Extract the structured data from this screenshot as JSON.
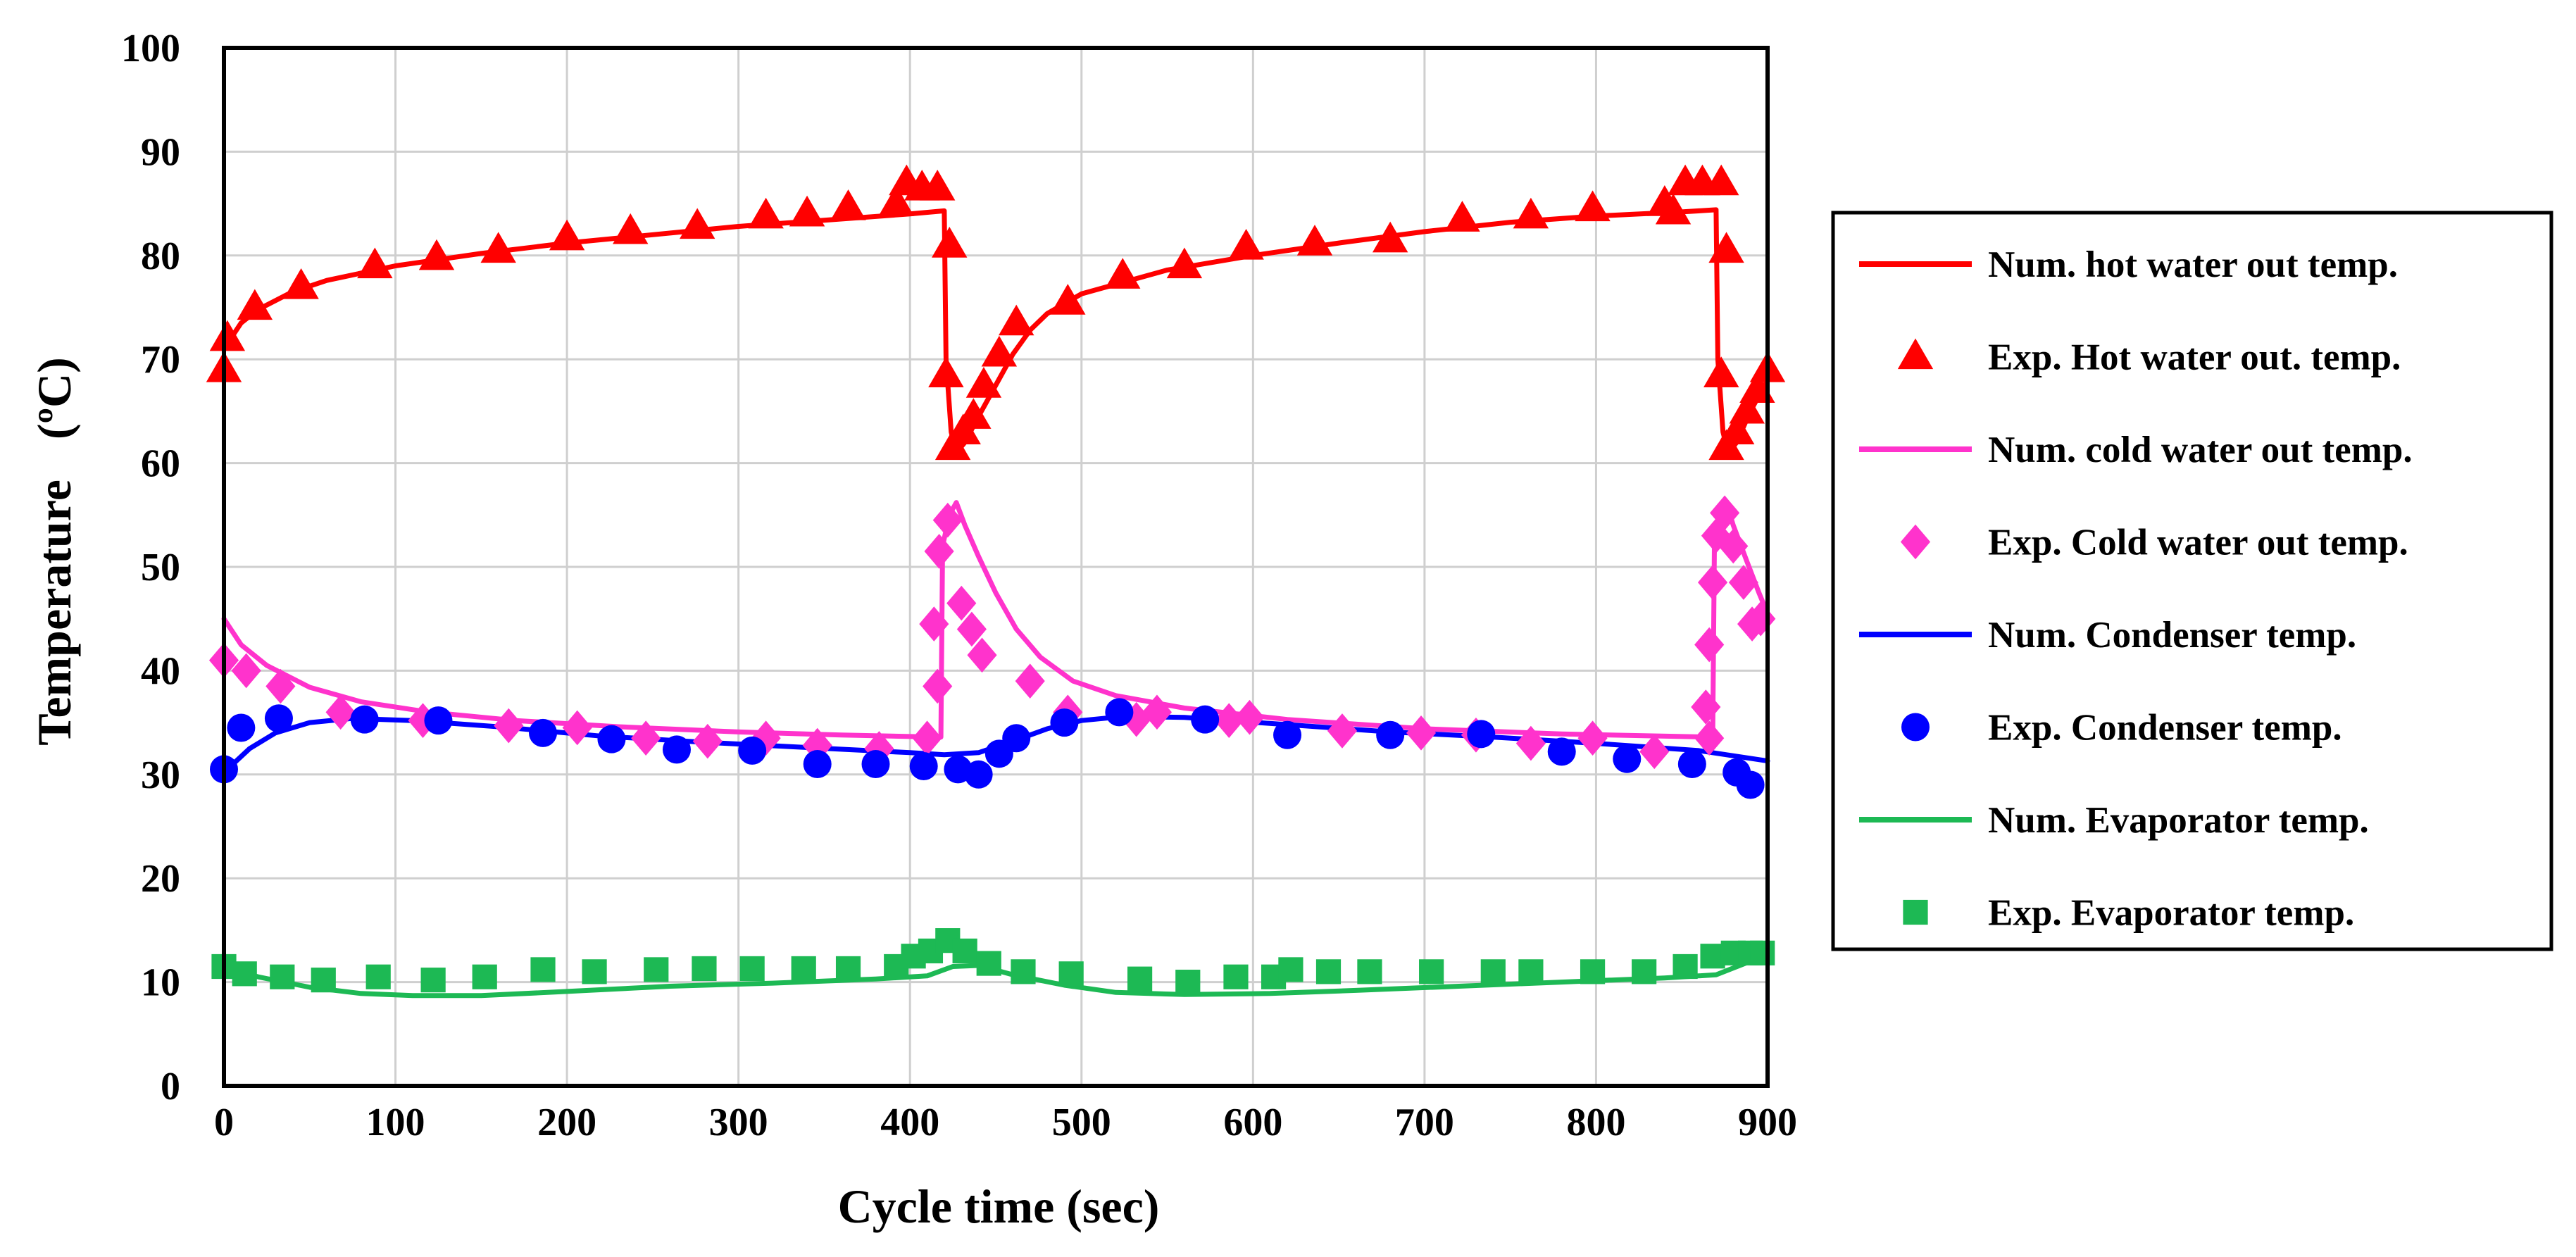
{
  "chart_data": {
    "type": "line",
    "title": "",
    "xlabel": "Cycle time (sec)",
    "ylabel": "Temperature",
    "ylabel_unit": "(ºC)",
    "xlim": [
      0,
      900
    ],
    "ylim": [
      0,
      100
    ],
    "x_ticks": [
      0,
      100,
      200,
      300,
      400,
      500,
      600,
      700,
      800,
      900
    ],
    "y_ticks": [
      0,
      10,
      20,
      30,
      40,
      50,
      60,
      70,
      80,
      90,
      100
    ],
    "grid": true,
    "legend_position": "right",
    "series": [
      {
        "name": "Num. hot water out temp.",
        "kind": "line",
        "color": "#ff0000",
        "points": [
          [
            0,
            71
          ],
          [
            10,
            73.5
          ],
          [
            20,
            74.8
          ],
          [
            40,
            76.5
          ],
          [
            60,
            77.6
          ],
          [
            100,
            79
          ],
          [
            150,
            80.2
          ],
          [
            200,
            81.2
          ],
          [
            250,
            82
          ],
          [
            300,
            82.8
          ],
          [
            350,
            83.4
          ],
          [
            400,
            84
          ],
          [
            420,
            84.3
          ],
          [
            421,
            70
          ],
          [
            424,
            63
          ],
          [
            427,
            61
          ],
          [
            432,
            62
          ],
          [
            440,
            64.5
          ],
          [
            450,
            67.5
          ],
          [
            460,
            70.5
          ],
          [
            470,
            72.8
          ],
          [
            480,
            74.4
          ],
          [
            500,
            76.3
          ],
          [
            550,
            78.6
          ],
          [
            600,
            80
          ],
          [
            650,
            81.2
          ],
          [
            700,
            82.3
          ],
          [
            750,
            83.2
          ],
          [
            800,
            83.8
          ],
          [
            850,
            84.2
          ],
          [
            870,
            84.4
          ],
          [
            871,
            70
          ],
          [
            874,
            63
          ],
          [
            877,
            61
          ],
          [
            882,
            62
          ],
          [
            890,
            65
          ],
          [
            900,
            68
          ]
        ]
      },
      {
        "name": "Exp. Hot water out. temp.",
        "kind": "marker",
        "marker": "triangle",
        "color": "#ff0000",
        "points": [
          [
            0,
            69
          ],
          [
            2,
            72
          ],
          [
            18,
            75
          ],
          [
            45,
            77
          ],
          [
            88,
            79
          ],
          [
            124,
            79.8
          ],
          [
            160,
            80.5
          ],
          [
            200,
            81.7
          ],
          [
            237,
            82.3
          ],
          [
            276,
            82.8
          ],
          [
            316,
            83.8
          ],
          [
            340,
            84
          ],
          [
            364,
            84.6
          ],
          [
            392,
            85
          ],
          [
            398,
            87
          ],
          [
            407,
            86.5
          ],
          [
            416,
            86.5
          ],
          [
            423,
            81
          ],
          [
            421,
            68.5
          ],
          [
            425,
            61.5
          ],
          [
            431,
            63
          ],
          [
            437,
            64.5
          ],
          [
            443,
            67.5
          ],
          [
            452,
            70.5
          ],
          [
            462,
            73.5
          ],
          [
            492,
            75.5
          ],
          [
            524,
            78
          ],
          [
            560,
            79
          ],
          [
            596,
            80.8
          ],
          [
            636,
            81.2
          ],
          [
            680,
            81.5
          ],
          [
            722,
            83.5
          ],
          [
            762,
            83.8
          ],
          [
            798,
            84.5
          ],
          [
            840,
            85
          ],
          [
            845,
            84.2
          ],
          [
            852,
            87
          ],
          [
            862,
            87
          ],
          [
            873,
            87
          ],
          [
            876,
            80.5
          ],
          [
            873,
            68.5
          ],
          [
            876,
            61.5
          ],
          [
            882,
            63
          ],
          [
            888,
            65
          ],
          [
            894,
            67
          ],
          [
            900,
            69
          ]
        ]
      },
      {
        "name": "Num. cold water out temp.",
        "kind": "line",
        "color": "#ff33cc",
        "points": [
          [
            0,
            45
          ],
          [
            10,
            42.5
          ],
          [
            25,
            40.5
          ],
          [
            50,
            38.4
          ],
          [
            80,
            37
          ],
          [
            120,
            36
          ],
          [
            170,
            35.2
          ],
          [
            230,
            34.6
          ],
          [
            300,
            34.1
          ],
          [
            360,
            33.8
          ],
          [
            418,
            33.6
          ],
          [
            419,
            52
          ],
          [
            423,
            55
          ],
          [
            427,
            56.2
          ],
          [
            432,
            54
          ],
          [
            440,
            51
          ],
          [
            450,
            47.5
          ],
          [
            462,
            44
          ],
          [
            476,
            41.3
          ],
          [
            495,
            39
          ],
          [
            520,
            37.6
          ],
          [
            560,
            36.4
          ],
          [
            620,
            35.3
          ],
          [
            700,
            34.4
          ],
          [
            780,
            33.9
          ],
          [
            868,
            33.6
          ],
          [
            869,
            52
          ],
          [
            873,
            55
          ],
          [
            876,
            56.2
          ],
          [
            880,
            54
          ],
          [
            888,
            50.5
          ],
          [
            895,
            47.5
          ],
          [
            900,
            45.5
          ]
        ]
      },
      {
        "name": "Exp. Cold water out temp.",
        "kind": "marker",
        "marker": "diamond",
        "color": "#ff33cc",
        "points": [
          [
            0,
            41
          ],
          [
            13,
            40
          ],
          [
            33,
            38.5
          ],
          [
            68,
            36
          ],
          [
            116,
            35.2
          ],
          [
            166,
            34.7
          ],
          [
            206,
            34.5
          ],
          [
            246,
            33.5
          ],
          [
            282,
            33.2
          ],
          [
            316,
            33.5
          ],
          [
            346,
            32.8
          ],
          [
            382,
            32.5
          ],
          [
            410,
            33.5
          ],
          [
            414,
            44.5
          ],
          [
            416,
            38.5
          ],
          [
            417,
            51.5
          ],
          [
            422,
            54.5
          ],
          [
            430,
            46.5
          ],
          [
            436,
            44
          ],
          [
            442,
            41.5
          ],
          [
            470,
            39
          ],
          [
            492,
            36
          ],
          [
            532,
            35.3
          ],
          [
            544,
            36
          ],
          [
            586,
            35.2
          ],
          [
            598,
            35.5
          ],
          [
            652,
            34.2
          ],
          [
            698,
            34
          ],
          [
            730,
            33.8
          ],
          [
            762,
            33
          ],
          [
            798,
            33.5
          ],
          [
            834,
            32.2
          ],
          [
            866,
            33.5
          ],
          [
            864,
            36.5
          ],
          [
            866,
            42.5
          ],
          [
            868,
            48.5
          ],
          [
            870,
            53
          ],
          [
            875,
            55.2
          ],
          [
            880,
            52
          ],
          [
            886,
            48.5
          ],
          [
            891,
            44.5
          ],
          [
            896,
            45
          ]
        ]
      },
      {
        "name": "Num. Condenser temp.",
        "kind": "line",
        "color": "#0000ff",
        "points": [
          [
            0,
            30.2
          ],
          [
            15,
            32.5
          ],
          [
            30,
            34
          ],
          [
            50,
            35
          ],
          [
            75,
            35.4
          ],
          [
            110,
            35.2
          ],
          [
            160,
            34.6
          ],
          [
            220,
            33.7
          ],
          [
            280,
            33.1
          ],
          [
            340,
            32.6
          ],
          [
            400,
            32.1
          ],
          [
            420,
            31.9
          ],
          [
            440,
            32.1
          ],
          [
            460,
            33.2
          ],
          [
            480,
            34.4
          ],
          [
            500,
            35.2
          ],
          [
            525,
            35.6
          ],
          [
            560,
            35.5
          ],
          [
            620,
            34.8
          ],
          [
            680,
            34.1
          ],
          [
            740,
            33.6
          ],
          [
            800,
            33
          ],
          [
            860,
            32.3
          ],
          [
            900,
            31.3
          ]
        ]
      },
      {
        "name": "Exp. Condenser temp.",
        "kind": "marker",
        "marker": "circle",
        "color": "#0000ff",
        "points": [
          [
            0,
            30.5
          ],
          [
            10,
            34.5
          ],
          [
            32,
            35.4
          ],
          [
            82,
            35.3
          ],
          [
            125,
            35.2
          ],
          [
            186,
            34
          ],
          [
            226,
            33.4
          ],
          [
            264,
            32.4
          ],
          [
            308,
            32.3
          ],
          [
            346,
            31
          ],
          [
            380,
            31
          ],
          [
            408,
            30.8
          ],
          [
            428,
            30.5
          ],
          [
            440,
            30
          ],
          [
            452,
            32
          ],
          [
            462,
            33.5
          ],
          [
            490,
            35
          ],
          [
            522,
            36
          ],
          [
            572,
            35.3
          ],
          [
            620,
            33.8
          ],
          [
            680,
            33.8
          ],
          [
            733,
            33.9
          ],
          [
            780,
            32.2
          ],
          [
            818,
            31.5
          ],
          [
            856,
            31
          ],
          [
            882,
            30.2
          ],
          [
            890,
            29
          ]
        ]
      },
      {
        "name": "Num. Evaporator temp.",
        "kind": "line",
        "color": "#1db954",
        "points": [
          [
            0,
            11.5
          ],
          [
            20,
            10.5
          ],
          [
            50,
            9.5
          ],
          [
            80,
            8.9
          ],
          [
            110,
            8.7
          ],
          [
            150,
            8.7
          ],
          [
            200,
            9.1
          ],
          [
            260,
            9.6
          ],
          [
            320,
            9.9
          ],
          [
            380,
            10.3
          ],
          [
            410,
            10.6
          ],
          [
            425,
            11.5
          ],
          [
            440,
            11.6
          ],
          [
            460,
            10.7
          ],
          [
            490,
            9.7
          ],
          [
            520,
            9
          ],
          [
            560,
            8.8
          ],
          [
            610,
            8.9
          ],
          [
            660,
            9.2
          ],
          [
            720,
            9.6
          ],
          [
            780,
            10
          ],
          [
            840,
            10.4
          ],
          [
            870,
            10.7
          ],
          [
            890,
            12
          ],
          [
            900,
            12.3
          ]
        ]
      },
      {
        "name": "Exp. Evaporator temp.",
        "kind": "marker",
        "marker": "square",
        "color": "#1db954",
        "points": [
          [
            0,
            11.5
          ],
          [
            12,
            10.8
          ],
          [
            34,
            10.5
          ],
          [
            58,
            10.2
          ],
          [
            90,
            10.5
          ],
          [
            122,
            10.2
          ],
          [
            152,
            10.5
          ],
          [
            186,
            11.2
          ],
          [
            216,
            11
          ],
          [
            252,
            11.2
          ],
          [
            280,
            11.3
          ],
          [
            308,
            11.3
          ],
          [
            338,
            11.3
          ],
          [
            364,
            11.3
          ],
          [
            392,
            11.5
          ],
          [
            402,
            12.5
          ],
          [
            412,
            13
          ],
          [
            422,
            14
          ],
          [
            432,
            13
          ],
          [
            446,
            11.8
          ],
          [
            466,
            11
          ],
          [
            494,
            10.8
          ],
          [
            534,
            10.3
          ],
          [
            562,
            10
          ],
          [
            590,
            10.5
          ],
          [
            612,
            10.5
          ],
          [
            622,
            11.2
          ],
          [
            644,
            11
          ],
          [
            668,
            11
          ],
          [
            704,
            11
          ],
          [
            740,
            11
          ],
          [
            762,
            11
          ],
          [
            798,
            11
          ],
          [
            828,
            11
          ],
          [
            852,
            11.5
          ],
          [
            868,
            12.5
          ],
          [
            880,
            12.8
          ],
          [
            890,
            12.8
          ],
          [
            897,
            12.8
          ]
        ]
      }
    ]
  }
}
